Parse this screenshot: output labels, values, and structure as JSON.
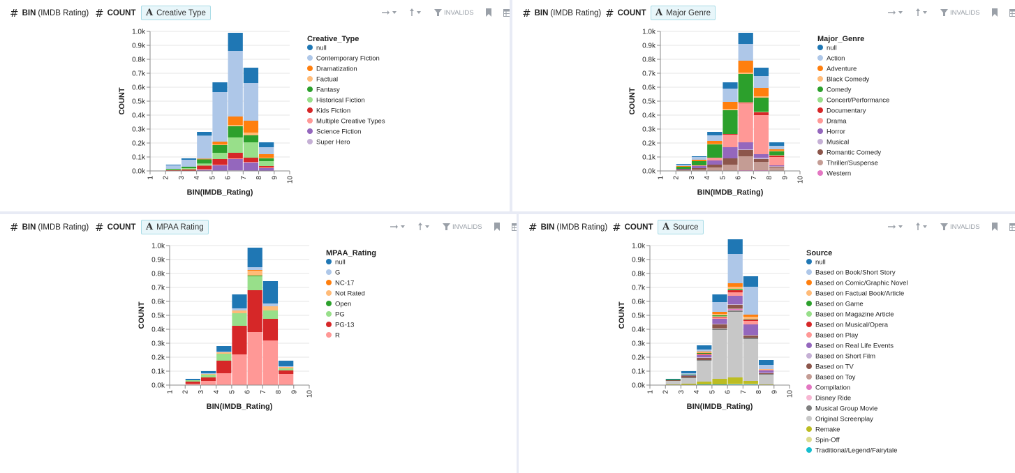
{
  "colors": [
    "#1f77b4",
    "#aec7e8",
    "#ff7f0e",
    "#ffbb78",
    "#2ca02c",
    "#98df8a",
    "#d62728",
    "#ff9896",
    "#9467bd",
    "#c5b0d5",
    "#8c564b",
    "#c49c94",
    "#e377c2",
    "#f7b6d2",
    "#7f7f7f",
    "#c7c7c7",
    "#bcbd22",
    "#dbdb8d",
    "#17becf",
    "#9edae5"
  ],
  "toolbar": {
    "invalids_label": "INVALIDS"
  },
  "panels": [
    {
      "x_shelf": {
        "fn": "BIN",
        "field": "(IMDB Rating)"
      },
      "y_shelf": {
        "fn": "COUNT"
      },
      "color_pill": {
        "label": "Creative Type"
      }
    },
    {
      "x_shelf": {
        "fn": "BIN",
        "field": "(IMDB Rating)"
      },
      "y_shelf": {
        "fn": "COUNT"
      },
      "color_pill": {
        "label": "Major Genre"
      }
    },
    {
      "x_shelf": {
        "fn": "BIN",
        "field": "(IMDB Rating)"
      },
      "y_shelf": {
        "fn": "COUNT"
      },
      "color_pill": {
        "label": "MPAA Rating"
      }
    },
    {
      "x_shelf": {
        "fn": "BIN",
        "field": "(IMDB Rating)"
      },
      "y_shelf": {
        "fn": "COUNT"
      },
      "color_pill": {
        "label": "Source"
      }
    }
  ],
  "chart_data": [
    {
      "type": "bar",
      "stacked": true,
      "xlabel": "BIN(IMDB_Rating)",
      "ylabel": "COUNT",
      "xlim": [
        1,
        10
      ],
      "ylim": [
        0,
        1000
      ],
      "x_ticks": [
        "1",
        "2",
        "3",
        "4",
        "5",
        "6",
        "7",
        "8",
        "9",
        "10"
      ],
      "y_ticks": [
        "0.0k",
        "0.1k",
        "0.2k",
        "0.3k",
        "0.4k",
        "0.5k",
        "0.6k",
        "0.7k",
        "0.8k",
        "0.9k",
        "1.0k"
      ],
      "legend_title": "Creative_Type",
      "legend_position": "right",
      "bins": [
        [
          1,
          2
        ],
        [
          2,
          3
        ],
        [
          3,
          4
        ],
        [
          4,
          5
        ],
        [
          5,
          6
        ],
        [
          6,
          7
        ],
        [
          7,
          8
        ],
        [
          8,
          9
        ],
        [
          9,
          10
        ]
      ],
      "series": [
        {
          "name": "Super Hero",
          "color_index": 9,
          "values": [
            0,
            0,
            0,
            0,
            0,
            5,
            0,
            0,
            0
          ]
        },
        {
          "name": "Science Fiction",
          "color_index": 8,
          "values": [
            0,
            0,
            0,
            8,
            40,
            80,
            60,
            20,
            0
          ]
        },
        {
          "name": "Multiple Creative Types",
          "color_index": 7,
          "values": [
            0,
            0,
            0,
            5,
            5,
            5,
            5,
            5,
            0
          ]
        },
        {
          "name": "Kids Fiction",
          "color_index": 6,
          "values": [
            0,
            5,
            10,
            25,
            40,
            40,
            30,
            10,
            0
          ]
        },
        {
          "name": "Historical Fiction",
          "color_index": 5,
          "values": [
            0,
            5,
            10,
            15,
            45,
            110,
            110,
            35,
            0
          ]
        },
        {
          "name": "Fantasy",
          "color_index": 4,
          "values": [
            0,
            5,
            10,
            30,
            55,
            80,
            50,
            20,
            0
          ]
        },
        {
          "name": "Factual",
          "color_index": 3,
          "values": [
            0,
            0,
            0,
            0,
            5,
            10,
            20,
            5,
            0
          ]
        },
        {
          "name": "Dramatization",
          "color_index": 2,
          "values": [
            0,
            0,
            0,
            5,
            20,
            60,
            85,
            25,
            0
          ]
        },
        {
          "name": "Contemporary Fiction",
          "color_index": 1,
          "values": [
            0,
            25,
            50,
            165,
            355,
            470,
            270,
            50,
            0
          ]
        },
        {
          "name": "null",
          "color_index": 0,
          "values": [
            0,
            5,
            10,
            27,
            70,
            130,
            110,
            35,
            0
          ]
        }
      ]
    },
    {
      "type": "bar",
      "stacked": true,
      "xlabel": "BIN(IMDB_Rating)",
      "ylabel": "COUNT",
      "xlim": [
        1,
        10
      ],
      "ylim": [
        0,
        1000
      ],
      "x_ticks": [
        "1",
        "2",
        "3",
        "4",
        "5",
        "6",
        "7",
        "8",
        "9",
        "10"
      ],
      "y_ticks": [
        "0.0k",
        "0.1k",
        "0.2k",
        "0.3k",
        "0.4k",
        "0.5k",
        "0.6k",
        "0.7k",
        "0.8k",
        "0.9k",
        "1.0k"
      ],
      "legend_title": "Major_Genre",
      "legend_position": "right",
      "bins": [
        [
          1,
          2
        ],
        [
          2,
          3
        ],
        [
          3,
          4
        ],
        [
          4,
          5
        ],
        [
          5,
          6
        ],
        [
          6,
          7
        ],
        [
          7,
          8
        ],
        [
          8,
          9
        ],
        [
          9,
          10
        ]
      ],
      "series": [
        {
          "name": "Western",
          "color_index": 12,
          "values": [
            0,
            0,
            0,
            0,
            0,
            5,
            5,
            0,
            0
          ]
        },
        {
          "name": "Thriller/Suspense",
          "color_index": 11,
          "values": [
            0,
            5,
            10,
            25,
            45,
            100,
            60,
            25,
            0
          ]
        },
        {
          "name": "Romantic Comedy",
          "color_index": 10,
          "values": [
            0,
            5,
            10,
            20,
            45,
            45,
            20,
            5,
            0
          ]
        },
        {
          "name": "Musical",
          "color_index": 9,
          "values": [
            0,
            0,
            0,
            0,
            0,
            5,
            10,
            5,
            0
          ]
        },
        {
          "name": "Horror",
          "color_index": 8,
          "values": [
            0,
            5,
            15,
            30,
            80,
            50,
            25,
            5,
            0
          ]
        },
        {
          "name": "Drama",
          "color_index": 7,
          "values": [
            0,
            0,
            5,
            20,
            90,
            280,
            280,
            60,
            0
          ]
        },
        {
          "name": "Documentary",
          "color_index": 6,
          "values": [
            0,
            0,
            0,
            0,
            5,
            5,
            20,
            10,
            0
          ]
        },
        {
          "name": "Concert/Performance",
          "color_index": 5,
          "values": [
            0,
            0,
            0,
            0,
            0,
            5,
            5,
            5,
            0
          ]
        },
        {
          "name": "Comedy",
          "color_index": 4,
          "values": [
            0,
            15,
            30,
            95,
            170,
            200,
            100,
            25,
            0
          ]
        },
        {
          "name": "Black Comedy",
          "color_index": 3,
          "values": [
            0,
            0,
            0,
            5,
            10,
            10,
            10,
            5,
            0
          ]
        },
        {
          "name": "Adventure",
          "color_index": 2,
          "values": [
            0,
            5,
            10,
            20,
            50,
            85,
            60,
            10,
            0
          ]
        },
        {
          "name": "Action",
          "color_index": 1,
          "values": [
            0,
            10,
            20,
            40,
            95,
            120,
            85,
            25,
            0
          ]
        },
        {
          "name": "null",
          "color_index": 0,
          "values": [
            0,
            5,
            5,
            25,
            45,
            80,
            60,
            25,
            0
          ]
        }
      ]
    },
    {
      "type": "bar",
      "stacked": true,
      "xlabel": "BIN(IMDB_Rating)",
      "ylabel": "COUNT",
      "xlim": [
        1,
        10
      ],
      "ylim": [
        0,
        1000
      ],
      "x_ticks": [
        "1",
        "2",
        "3",
        "4",
        "5",
        "6",
        "7",
        "8",
        "9",
        "10"
      ],
      "y_ticks": [
        "0.0k",
        "0.1k",
        "0.2k",
        "0.3k",
        "0.4k",
        "0.5k",
        "0.6k",
        "0.7k",
        "0.8k",
        "0.9k",
        "1.0k"
      ],
      "legend_title": "MPAA_Rating",
      "legend_position": "right",
      "bins": [
        [
          1,
          2
        ],
        [
          2,
          3
        ],
        [
          3,
          4
        ],
        [
          4,
          5
        ],
        [
          5,
          6
        ],
        [
          6,
          7
        ],
        [
          7,
          8
        ],
        [
          8,
          9
        ],
        [
          9,
          10
        ]
      ],
      "series": [
        {
          "name": "R",
          "color_index": 7,
          "values": [
            0,
            10,
            30,
            85,
            220,
            380,
            320,
            80,
            0
          ]
        },
        {
          "name": "PG-13",
          "color_index": 6,
          "values": [
            0,
            15,
            25,
            90,
            205,
            300,
            155,
            25,
            0
          ]
        },
        {
          "name": "PG",
          "color_index": 5,
          "values": [
            0,
            10,
            20,
            50,
            90,
            100,
            60,
            15,
            0
          ]
        },
        {
          "name": "Open",
          "color_index": 4,
          "values": [
            0,
            0,
            0,
            0,
            0,
            5,
            0,
            0,
            0
          ]
        },
        {
          "name": "Not Rated",
          "color_index": 3,
          "values": [
            0,
            0,
            5,
            10,
            20,
            35,
            30,
            10,
            0
          ]
        },
        {
          "name": "NC-17",
          "color_index": 2,
          "values": [
            0,
            0,
            0,
            0,
            0,
            5,
            0,
            0,
            0
          ]
        },
        {
          "name": "G",
          "color_index": 1,
          "values": [
            0,
            0,
            5,
            5,
            15,
            20,
            20,
            5,
            0
          ]
        },
        {
          "name": "null",
          "color_index": 0,
          "values": [
            0,
            10,
            15,
            40,
            100,
            140,
            160,
            40,
            0
          ]
        }
      ]
    },
    {
      "type": "bar",
      "stacked": true,
      "xlabel": "BIN(IMDB_Rating)",
      "ylabel": "COUNT",
      "xlim": [
        1,
        10
      ],
      "ylim": [
        0,
        1000
      ],
      "x_ticks": [
        "1",
        "2",
        "3",
        "4",
        "5",
        "6",
        "7",
        "8",
        "9",
        "10"
      ],
      "y_ticks": [
        "0.0k",
        "0.1k",
        "0.2k",
        "0.3k",
        "0.4k",
        "0.5k",
        "0.6k",
        "0.7k",
        "0.8k",
        "0.9k",
        "1.0k"
      ],
      "legend_title": "Source",
      "legend_position": "right",
      "bins": [
        [
          1,
          2
        ],
        [
          2,
          3
        ],
        [
          3,
          4
        ],
        [
          4,
          5
        ],
        [
          5,
          6
        ],
        [
          6,
          7
        ],
        [
          7,
          8
        ],
        [
          8,
          9
        ],
        [
          9,
          10
        ]
      ],
      "series": [
        {
          "name": "Traditional/Legend/Fairytale",
          "color_index": 18,
          "values": [
            0,
            0,
            0,
            5,
            5,
            5,
            5,
            0,
            0
          ]
        },
        {
          "name": "Spin-Off",
          "color_index": 17,
          "values": [
            0,
            0,
            0,
            0,
            0,
            5,
            5,
            0,
            0
          ]
        },
        {
          "name": "Remake",
          "color_index": 16,
          "values": [
            0,
            5,
            10,
            20,
            40,
            45,
            20,
            5,
            0
          ]
        },
        {
          "name": "Original Screenplay",
          "color_index": 15,
          "values": [
            0,
            25,
            40,
            150,
            350,
            470,
            300,
            70,
            0
          ]
        },
        {
          "name": "Musical Group Movie",
          "color_index": 14,
          "values": [
            0,
            0,
            5,
            5,
            10,
            10,
            10,
            5,
            0
          ]
        },
        {
          "name": "Disney Ride",
          "color_index": 13,
          "values": [
            0,
            0,
            0,
            0,
            0,
            5,
            0,
            0,
            0
          ]
        },
        {
          "name": "Compilation",
          "color_index": 12,
          "values": [
            0,
            0,
            0,
            0,
            0,
            5,
            0,
            0,
            0
          ]
        },
        {
          "name": "Based on Toy",
          "color_index": 11,
          "values": [
            0,
            0,
            0,
            0,
            5,
            5,
            0,
            0,
            0
          ]
        },
        {
          "name": "Based on TV",
          "color_index": 10,
          "values": [
            0,
            5,
            10,
            15,
            25,
            25,
            15,
            5,
            0
          ]
        },
        {
          "name": "Based on Short Film",
          "color_index": 9,
          "values": [
            0,
            0,
            0,
            5,
            5,
            5,
            5,
            5,
            0
          ]
        },
        {
          "name": "Based on Real Life Events",
          "color_index": 8,
          "values": [
            0,
            0,
            5,
            15,
            35,
            60,
            75,
            15,
            0
          ]
        },
        {
          "name": "Based on Play",
          "color_index": 7,
          "values": [
            0,
            0,
            0,
            5,
            10,
            25,
            25,
            5,
            0
          ]
        },
        {
          "name": "Based on Musical/Opera",
          "color_index": 6,
          "values": [
            0,
            0,
            0,
            5,
            5,
            15,
            10,
            0,
            0
          ]
        },
        {
          "name": "Based on Magazine Article",
          "color_index": 5,
          "values": [
            0,
            0,
            0,
            0,
            5,
            5,
            5,
            0,
            0
          ]
        },
        {
          "name": "Based on Game",
          "color_index": 4,
          "values": [
            0,
            5,
            5,
            5,
            5,
            5,
            0,
            0,
            0
          ]
        },
        {
          "name": "Based on Factual Book/Article",
          "color_index": 3,
          "values": [
            0,
            0,
            0,
            5,
            10,
            15,
            15,
            5,
            0
          ]
        },
        {
          "name": "Based on Comic/Graphic Novel",
          "color_index": 2,
          "values": [
            0,
            0,
            0,
            5,
            15,
            25,
            15,
            0,
            0
          ]
        },
        {
          "name": "Based on Book/Short Story",
          "color_index": 1,
          "values": [
            0,
            0,
            10,
            15,
            70,
            210,
            200,
            30,
            0
          ]
        },
        {
          "name": "null",
          "color_index": 0,
          "values": [
            0,
            5,
            15,
            30,
            55,
            105,
            75,
            35,
            0
          ]
        }
      ]
    }
  ]
}
